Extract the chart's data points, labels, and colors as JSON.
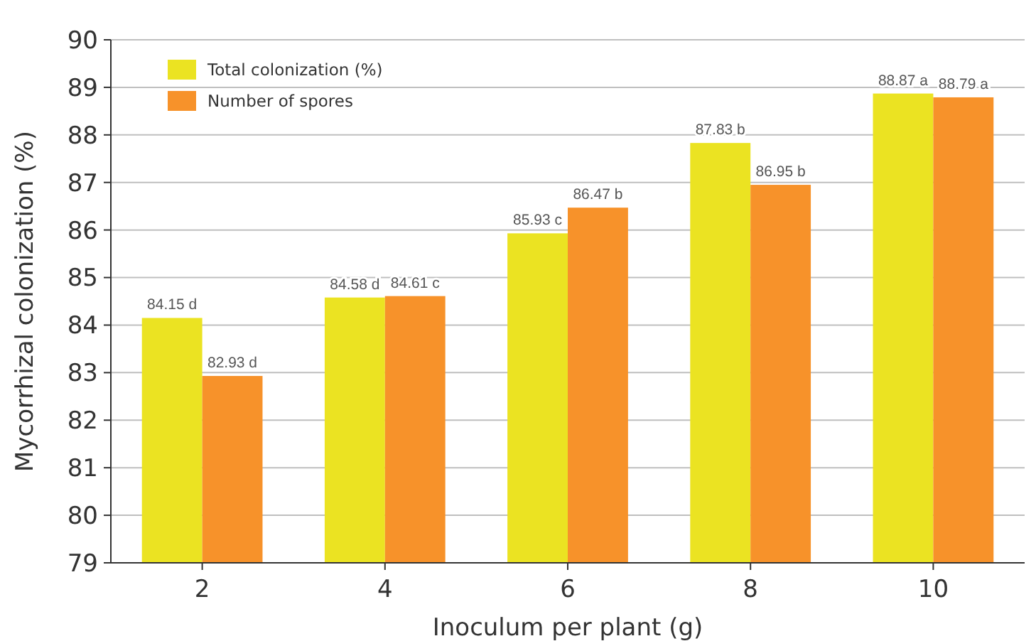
{
  "chart_data": {
    "type": "bar",
    "xlabel": "Inoculum per plant (g)",
    "ylabel": "Mycorrhizal colonization (%)",
    "categories": [
      "2",
      "4",
      "6",
      "8",
      "10"
    ],
    "series": [
      {
        "name": "Total colonization (%)",
        "color": "#ebe322",
        "values": [
          84.15,
          84.58,
          85.93,
          87.83,
          88.87
        ],
        "value_labels": [
          "84.15 d",
          "84.58 d",
          "85.93 c",
          "87.83 b",
          "88.87 a"
        ]
      },
      {
        "name": "Number of spores",
        "color": "#f7922a",
        "values": [
          82.93,
          84.61,
          86.47,
          86.95,
          88.79
        ],
        "value_labels": [
          "82.93 d",
          "84.61 c",
          "86.47 b",
          "86.95 b",
          "88.79 a"
        ]
      }
    ],
    "ylim": [
      79,
      90
    ],
    "yticks": [
      79,
      80,
      81,
      82,
      83,
      84,
      85,
      86,
      87,
      88,
      89,
      90
    ],
    "grid": "y",
    "legend": "top left"
  }
}
